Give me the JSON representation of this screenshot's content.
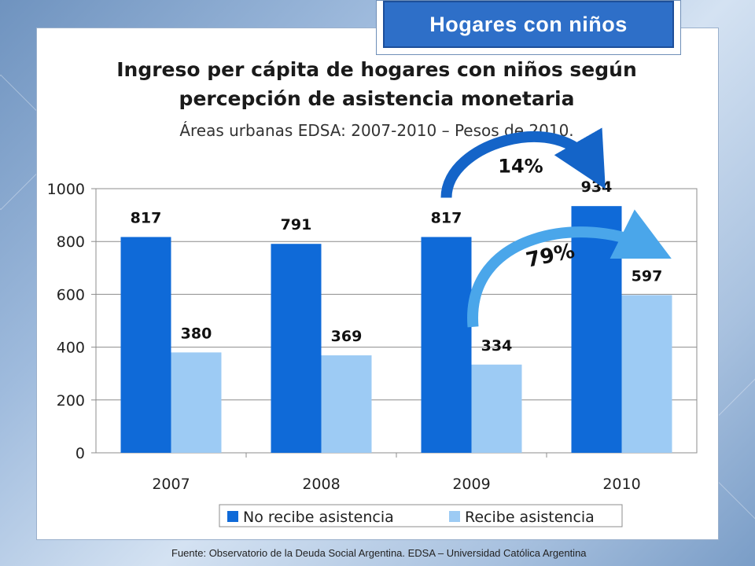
{
  "badge": {
    "label": "Hogares con niños"
  },
  "header": {
    "title_line1": "Ingreso per cápita de hogares con niños según",
    "title_line2": "percepción de asistencia monetaria",
    "subtitle": "Áreas urbanas EDSA: 2007-2010 – Pesos de 2010."
  },
  "chart_data": {
    "type": "bar",
    "categories": [
      "2007",
      "2008",
      "2009",
      "2010"
    ],
    "series": [
      {
        "name": "No recibe asistencia",
        "values": [
          817,
          791,
          817,
          934
        ],
        "color": "#0f6ad8"
      },
      {
        "name": "Recibe asistencia",
        "values": [
          380,
          369,
          334,
          597
        ],
        "color": "#9dcbf4"
      }
    ],
    "ylim": [
      0,
      1000
    ],
    "yticks": [
      0,
      200,
      400,
      600,
      800,
      1000
    ],
    "grid": true,
    "legend": "bottom",
    "annotations": [
      {
        "label": "14%",
        "from": "2009 No recibe asistencia",
        "to": "2010 No recibe asistencia",
        "color": "#1464c8"
      },
      {
        "label": "79%",
        "from": "2009 Recibe asistencia",
        "to": "2010 Recibe asistencia",
        "color": "#4aa6ea"
      }
    ]
  },
  "footer": {
    "source": "Fuente: Observatorio de la Deuda Social Argentina. EDSA – Universidad Católica Argentina"
  }
}
